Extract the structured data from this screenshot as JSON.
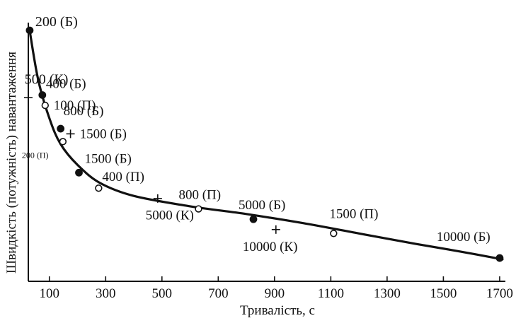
{
  "chart_data": {
    "type": "scatter",
    "title": "",
    "xlabel": "Тривалість, с",
    "ylabel": "Швидкість (потужність) навантаження",
    "xlim": [
      0,
      1700
    ],
    "x_ticks": [
      100,
      300,
      500,
      700,
      900,
      1100,
      1300,
      1500,
      1700
    ],
    "y_ticks_shown": false,
    "grid": false,
    "legend": "none",
    "curve": {
      "x": [
        30,
        60,
        100,
        140,
        200,
        280,
        400,
        600,
        800,
        1000,
        1200,
        1400,
        1560,
        1710
      ],
      "y": [
        97,
        78,
        63,
        53,
        45,
        38,
        33,
        29,
        26,
        22.5,
        18.5,
        14.5,
        11.5,
        8.5
      ]
    },
    "points": [
      {
        "x": 30,
        "y": 97,
        "marker": "filled",
        "label": "200 (Б)"
      },
      {
        "x": 100,
        "y": 78,
        "marker": "none",
        "label": "500 (К)"
      },
      {
        "x": 75,
        "y": 72,
        "marker": "filled",
        "label": "400 (Б)"
      },
      {
        "x": 25,
        "y": 71,
        "marker": "plus",
        "label": ""
      },
      {
        "x": 85,
        "y": 68,
        "marker": "open",
        "label": "100 (П)"
      },
      {
        "x": 140,
        "y": 59,
        "marker": "filled",
        "label": "800 (Б)"
      },
      {
        "x": 175,
        "y": 57,
        "marker": "plus",
        "label": "1500 (Б)"
      },
      {
        "x": 148,
        "y": 54,
        "marker": "open",
        "label": "200 (П)"
      },
      {
        "x": 205,
        "y": 42,
        "marker": "filled",
        "label": "1500 (Б)"
      },
      {
        "x": 275,
        "y": 36,
        "marker": "open",
        "label": "400 (П)"
      },
      {
        "x": 485,
        "y": 32,
        "marker": "plus",
        "label": ""
      },
      {
        "x": 630,
        "y": 28,
        "marker": "open",
        "label": "800 (П)"
      },
      {
        "x": 500,
        "y": 25,
        "marker": "none",
        "label": "5000 (К)"
      },
      {
        "x": 825,
        "y": 24,
        "marker": "filled",
        "label": "5000 (Б)"
      },
      {
        "x": 905,
        "y": 20,
        "marker": "plus",
        "label": "10000 (К)"
      },
      {
        "x": 1110,
        "y": 18.5,
        "marker": "open",
        "label": "1500 (П)"
      },
      {
        "x": 1700,
        "y": 9,
        "marker": "filled",
        "label": "10000 (Б)"
      }
    ]
  }
}
